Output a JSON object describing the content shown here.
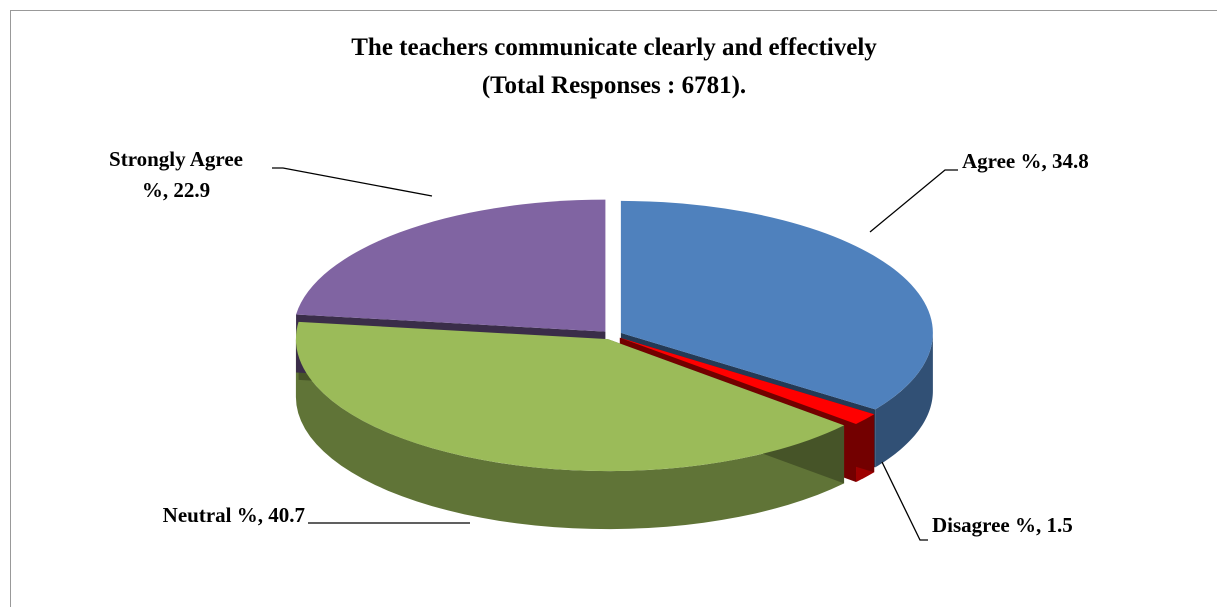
{
  "chart_data": {
    "type": "pie",
    "title": "The teachers communicate clearly and effectively\n(Total Responses : 6781).",
    "values": [
      34.8,
      1.5,
      40.7,
      22.9
    ],
    "value_labels": [
      "Agree %, 34.8",
      "Disagree %, 1.5",
      "Neutral %, 40.7",
      "Strongly Agree\n%, 22.9"
    ],
    "colors": [
      "#4f81bd",
      "#ff0000",
      "#9bbb59",
      "#8064a2"
    ]
  }
}
